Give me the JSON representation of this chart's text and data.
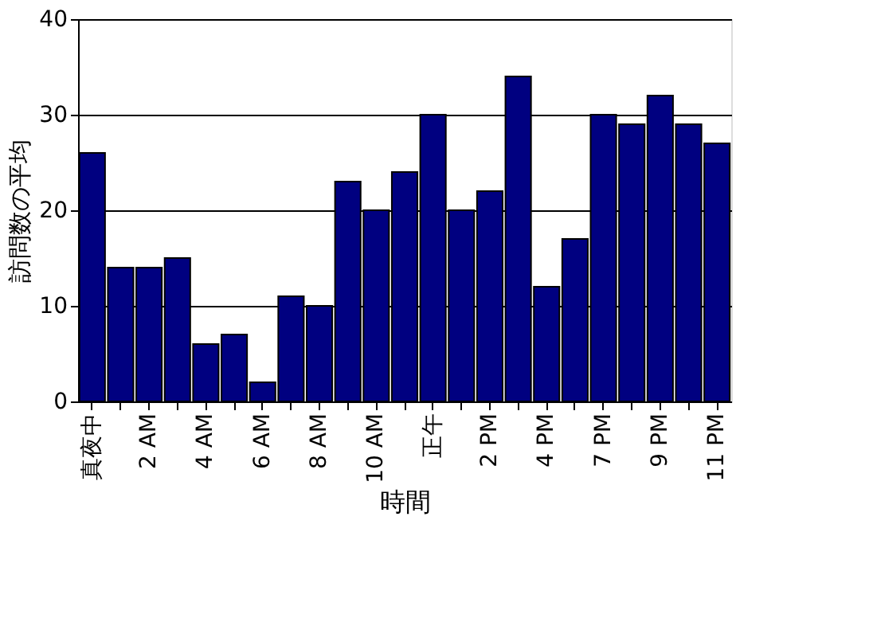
{
  "chart_data": {
    "type": "bar",
    "xlabel": "時間",
    "ylabel": "訪問数の平均",
    "categories": [
      "真夜中",
      null,
      "2 AM",
      null,
      "4 AM",
      null,
      "6 AM",
      null,
      "8 AM",
      null,
      "10 AM",
      null,
      "正午",
      null,
      "2 PM",
      null,
      "4 PM",
      null,
      "7 PM",
      null,
      "9 PM",
      null,
      "11 PM"
    ],
    "values": [
      26,
      14,
      14,
      15,
      6,
      7,
      2,
      11,
      10,
      23,
      20,
      24,
      30,
      20,
      22,
      34,
      12,
      17,
      30,
      29,
      32,
      29,
      27
    ],
    "color": "#000080",
    "ylim": [
      0,
      40
    ],
    "yticks": [
      0,
      10,
      20,
      30,
      40
    ],
    "grid": "y"
  }
}
